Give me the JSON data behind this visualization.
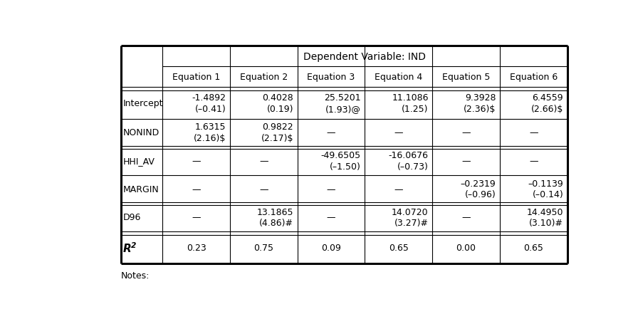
{
  "dep_var_header": "Dependent Variable: IND",
  "col_headers": [
    "Equation 1",
    "Equation 2",
    "Equation 3",
    "Equation 4",
    "Equation 5",
    "Equation 6"
  ],
  "row_labels": [
    "Intercept",
    "NONIND",
    "HHI_AV",
    "MARGIN",
    "D96"
  ],
  "cells": [
    [
      "-1.4892\n(–0.41)",
      "0.4028\n(0.19)",
      "25.5201\n(1.93)@",
      "11.1086\n(1.25)",
      "9.3928\n(2.36)$",
      "6.4559\n(2.66)$"
    ],
    [
      "1.6315\n(2.16)$",
      "0.9822\n(2.17)$",
      "—",
      "—",
      "—",
      "—"
    ],
    [
      "—",
      "—",
      "-49.6505\n(–1.50)",
      "-16.0676\n(–0.73)",
      "—",
      "—"
    ],
    [
      "—",
      "—",
      "—",
      "—",
      "–0.2319\n(–0.96)",
      "–0.1139\n(–0.14)"
    ],
    [
      "—",
      "13.1865\n(4.86)#",
      "—",
      "14.0720\n(3.27)#",
      "—",
      "14.4950\n(3.10)#"
    ]
  ],
  "r2_values": [
    "0.23",
    "0.75",
    "0.09",
    "0.65",
    "0.00",
    "0.65"
  ],
  "notes": "Notes:",
  "bg_color": "#ffffff",
  "text_color": "#000000"
}
